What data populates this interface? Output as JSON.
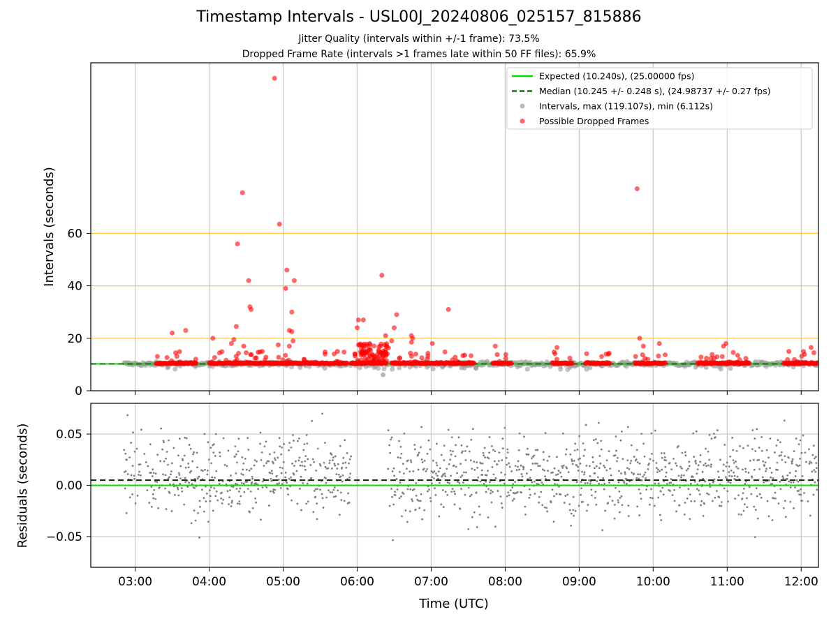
{
  "chart_data": {
    "type": "scatter",
    "title": "Timestamp Intervals - USL00J_20240806_025157_815886",
    "subtitle_1": "Jitter Quality (intervals within +/-1 frame): 73.5%",
    "subtitle_2": "Dropped Frame Rate (intervals >1 frames late within 50 FF files): 65.9%",
    "xlabel": "Time (UTC)",
    "x_ticks": [
      "03:00",
      "04:00",
      "05:00",
      "06:00",
      "07:00",
      "08:00",
      "09:00",
      "10:00",
      "11:00",
      "12:00"
    ],
    "x_range": [
      "02:24",
      "12:14"
    ],
    "top_panel": {
      "ylabel": "Intervals (seconds)",
      "y_ticks": [
        "0",
        "20",
        "40",
        "60"
      ],
      "ylim": [
        0,
        125
      ],
      "orange_reference_lines": [
        20,
        40,
        60
      ],
      "expected_line": 10.24,
      "median_line": 10.245,
      "legend_position": "upper right",
      "legend": [
        {
          "label": "Expected (10.240s), (25.00000 fps)",
          "style": "solid",
          "color": "#00e000"
        },
        {
          "label": "Median (10.245 +/- 0.248 s), (24.98737 +/- 0.27 fps)",
          "style": "dashed",
          "color": "#007a00"
        },
        {
          "label": "Intervals, max (119.107s), min (6.112s)",
          "style": "marker",
          "color": "#888888"
        },
        {
          "label": "Possible Dropped Frames",
          "style": "marker",
          "color": "#ff0000"
        }
      ],
      "dropped_frames": [
        [
          "04:53",
          119.1
        ],
        [
          "04:27",
          75.5
        ],
        [
          "09:47",
          77.0
        ],
        [
          "04:57",
          63.5
        ],
        [
          "04:23",
          56.0
        ],
        [
          "05:03",
          46.0
        ],
        [
          "04:32",
          42.0
        ],
        [
          "05:09",
          42.0
        ],
        [
          "05:02",
          39.0
        ],
        [
          "06:20",
          44.0
        ],
        [
          "04:33",
          32.0
        ],
        [
          "04:34",
          31.0
        ],
        [
          "07:14",
          31.0
        ],
        [
          "05:07",
          30.0
        ],
        [
          "06:32",
          29.0
        ],
        [
          "06:01",
          27.0
        ],
        [
          "06:05",
          27.0
        ],
        [
          "06:00",
          24.0
        ],
        [
          "06:30",
          24.0
        ],
        [
          "04:22",
          24.5
        ],
        [
          "03:41",
          23.0
        ],
        [
          "03:30",
          22.0
        ],
        [
          "05:05",
          23.0
        ],
        [
          "05:07",
          22.5
        ],
        [
          "06:23",
          21.0
        ],
        [
          "06:44",
          21.0
        ],
        [
          "06:45",
          20.0
        ],
        [
          "04:03",
          20.0
        ],
        [
          "09:49",
          20.0
        ],
        [
          "04:20",
          19.5
        ],
        [
          "04:18",
          18.0
        ],
        [
          "05:08",
          19.0
        ],
        [
          "04:56",
          17.5
        ],
        [
          "05:05",
          17.0
        ],
        [
          "04:28",
          17.0
        ],
        [
          "06:28",
          19.0
        ],
        [
          "06:19",
          17.0
        ],
        [
          "06:10",
          18.0
        ],
        [
          "06:44",
          18.5
        ],
        [
          "07:01",
          18.0
        ],
        [
          "10:05",
          18.0
        ],
        [
          "10:59",
          18.0
        ],
        [
          "10:57",
          17.0
        ],
        [
          "07:52",
          17.0
        ],
        [
          "08:42",
          16.5
        ],
        [
          "11:50",
          15.0
        ],
        [
          "12:08",
          16.5
        ],
        [
          "09:52",
          17.0
        ],
        [
          "04:43",
          15.0
        ],
        [
          "04:30",
          14.5
        ],
        [
          "05:34",
          14.0
        ],
        [
          "05:44",
          15.0
        ]
      ]
    },
    "bottom_panel": {
      "ylabel": "Residuals (seconds)",
      "y_ticks": [
        "−0.05",
        "0.00",
        "0.05"
      ],
      "ylim": [
        -0.08,
        0.08
      ],
      "expected_line": 0.0,
      "median_line": 0.005,
      "points_color": "#808080"
    }
  }
}
